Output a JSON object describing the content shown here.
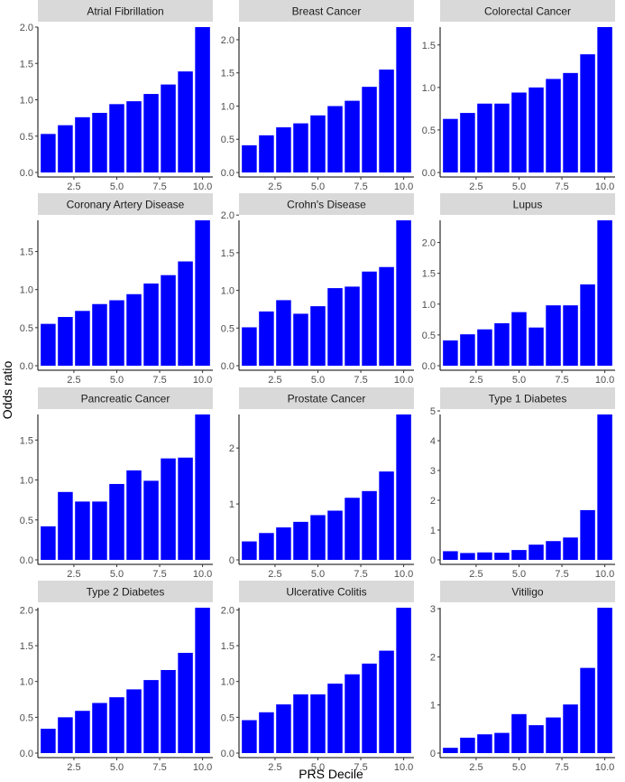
{
  "chart_data": {
    "type": "bar",
    "layout": "facet-grid",
    "xlabel": "PRS Decile",
    "ylabel": "Odds ratio",
    "bar_color": "#0000ff",
    "strip_color": "#d9d9d9",
    "x": [
      1,
      2,
      3,
      4,
      5,
      6,
      7,
      8,
      9,
      10
    ],
    "xlim": [
      0.4,
      10.6
    ],
    "x_ticks": [
      2.5,
      5.0,
      7.5,
      10.0
    ],
    "x_tick_labels": [
      "2.5",
      "5.0",
      "7.5",
      "10.0"
    ],
    "panels": [
      {
        "title": "Atrial Fibrillation",
        "values": [
          0.53,
          0.65,
          0.76,
          0.82,
          0.94,
          0.98,
          1.08,
          1.21,
          1.39,
          2.0
        ],
        "ylim": [
          0,
          2.0
        ],
        "y_ticks": [
          0.0,
          0.5,
          1.0,
          1.5,
          2.0
        ],
        "y_tick_labels": [
          "0.0",
          "0.5",
          "1.0",
          "1.5",
          "2.0"
        ]
      },
      {
        "title": "Breast Cancer",
        "values": [
          0.41,
          0.56,
          0.68,
          0.74,
          0.86,
          1.0,
          1.08,
          1.29,
          1.55,
          2.19
        ],
        "ylim": [
          0,
          2.19
        ],
        "y_ticks": [
          0.0,
          0.5,
          1.0,
          1.5,
          2.0
        ],
        "y_tick_labels": [
          "0.0",
          "0.5",
          "1.0",
          "1.5",
          "2.0"
        ]
      },
      {
        "title": "Colorectal Cancer",
        "values": [
          0.63,
          0.7,
          0.81,
          0.81,
          0.94,
          1.0,
          1.1,
          1.17,
          1.39,
          1.71
        ],
        "ylim": [
          0,
          1.71
        ],
        "y_ticks": [
          0.0,
          0.5,
          1.0,
          1.5
        ],
        "y_tick_labels": [
          "0.0",
          "0.5",
          "1.0",
          "1.5"
        ]
      },
      {
        "title": "Coronary Artery Disease",
        "values": [
          0.55,
          0.64,
          0.72,
          0.81,
          0.86,
          0.94,
          1.08,
          1.19,
          1.37,
          1.91
        ],
        "ylim": [
          0,
          1.91
        ],
        "y_ticks": [
          0.0,
          0.5,
          1.0,
          1.5
        ],
        "y_tick_labels": [
          "0.0",
          "0.5",
          "1.0",
          "1.5"
        ]
      },
      {
        "title": "Crohn's Disease",
        "values": [
          0.51,
          0.72,
          0.87,
          0.69,
          0.79,
          1.03,
          1.05,
          1.25,
          1.31,
          1.93
        ],
        "ylim": [
          0,
          1.93
        ],
        "y_ticks": [
          0.0,
          0.5,
          1.0,
          1.5,
          2.0
        ],
        "y_tick_labels": [
          "0.0",
          "0.5",
          "1.0",
          "1.5",
          "2.0"
        ]
      },
      {
        "title": "Lupus",
        "values": [
          0.41,
          0.51,
          0.59,
          0.69,
          0.87,
          0.62,
          0.98,
          0.98,
          1.32,
          2.36
        ],
        "ylim": [
          0,
          2.36
        ],
        "y_ticks": [
          0.0,
          0.5,
          1.0,
          1.5,
          2.0
        ],
        "y_tick_labels": [
          "0.0",
          "0.5",
          "1.0",
          "1.5",
          "2.0"
        ]
      },
      {
        "title": "Pancreatic Cancer",
        "values": [
          0.42,
          0.85,
          0.73,
          0.73,
          0.95,
          1.12,
          0.99,
          1.27,
          1.28,
          1.82
        ],
        "ylim": [
          0,
          1.82
        ],
        "y_ticks": [
          0.0,
          0.5,
          1.0,
          1.5
        ],
        "y_tick_labels": [
          "0.0",
          "0.5",
          "1.0",
          "1.5"
        ]
      },
      {
        "title": "Prostate Cancer",
        "values": [
          0.33,
          0.48,
          0.58,
          0.68,
          0.8,
          0.88,
          1.11,
          1.23,
          1.58,
          2.6
        ],
        "ylim": [
          0,
          2.6
        ],
        "y_ticks": [
          0,
          1,
          2
        ],
        "y_tick_labels": [
          "0",
          "1",
          "2"
        ]
      },
      {
        "title": "Type 1 Diabetes",
        "values": [
          0.29,
          0.23,
          0.25,
          0.24,
          0.33,
          0.51,
          0.63,
          0.75,
          1.67,
          4.88
        ],
        "ylim": [
          0,
          4.88
        ],
        "y_ticks": [
          0,
          1,
          2,
          3,
          4,
          5
        ],
        "y_tick_labels": [
          "0",
          "1",
          "2",
          "3",
          "4",
          "5"
        ]
      },
      {
        "title": "Type 2 Diabetes",
        "values": [
          0.34,
          0.5,
          0.59,
          0.7,
          0.78,
          0.89,
          1.02,
          1.16,
          1.4,
          2.03
        ],
        "ylim": [
          0,
          2.03
        ],
        "y_ticks": [
          0.0,
          0.5,
          1.0,
          1.5,
          2.0
        ],
        "y_tick_labels": [
          "0.0",
          "0.5",
          "1.0",
          "1.5",
          "2.0"
        ]
      },
      {
        "title": "Ulcerative Colitis",
        "values": [
          0.46,
          0.57,
          0.68,
          0.82,
          0.82,
          0.97,
          1.1,
          1.25,
          1.43,
          2.03
        ],
        "ylim": [
          0,
          2.03
        ],
        "y_ticks": [
          0.0,
          0.5,
          1.0,
          1.5,
          2.0
        ],
        "y_tick_labels": [
          "0.0",
          "0.5",
          "1.0",
          "1.5",
          "2.0"
        ]
      },
      {
        "title": "Vitiligo",
        "values": [
          0.11,
          0.32,
          0.39,
          0.42,
          0.81,
          0.58,
          0.74,
          1.01,
          1.77,
          3.02
        ],
        "ylim": [
          0,
          3.02
        ],
        "y_ticks": [
          0,
          1,
          2,
          3
        ],
        "y_tick_labels": [
          "0",
          "1",
          "2",
          "3"
        ]
      }
    ]
  }
}
